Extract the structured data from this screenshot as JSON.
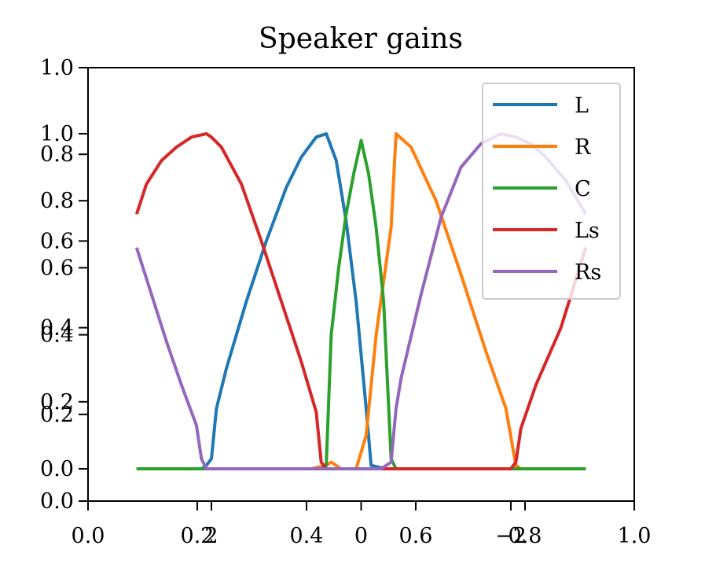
{
  "chart_data": {
    "type": "line",
    "title": "Speaker gains",
    "xlabel": "",
    "ylabel": "",
    "xlim": [
      0,
      1
    ],
    "ylim": [
      0,
      1
    ],
    "grid": false,
    "legend_placement": "top-right",
    "outer_x_ticks": [
      {
        "value": 0.0,
        "label": "0.0"
      },
      {
        "value": 0.2,
        "label": "0.2"
      },
      {
        "value": 0.4,
        "label": "0.4"
      },
      {
        "value": 0.6,
        "label": "0.6"
      },
      {
        "value": 0.8,
        "label": "0.8"
      },
      {
        "value": 1.0,
        "label": "1.0"
      }
    ],
    "outer_y_ticks": [
      {
        "value": 0.0,
        "label": "0.0"
      },
      {
        "value": 0.2,
        "label": "0.2"
      },
      {
        "value": 0.4,
        "label": "0.4"
      },
      {
        "value": 0.6,
        "label": "0.6"
      },
      {
        "value": 0.8,
        "label": "0.8"
      },
      {
        "value": 1.0,
        "label": "1.0"
      }
    ],
    "inner_x_ticks": [
      {
        "value": 0.2,
        "label": "2"
      },
      {
        "value": 0.5,
        "label": "0"
      },
      {
        "value": 0.8,
        "label": "−2"
      }
    ],
    "inner_y_ticks": [
      {
        "value": 0.0,
        "label": "0.0"
      },
      {
        "value": 0.2,
        "label": "0.2"
      },
      {
        "value": 0.4,
        "label": "0.4"
      },
      {
        "value": 0.6,
        "label": "0.6"
      },
      {
        "value": 0.8,
        "label": "0.8"
      },
      {
        "value": 1.0,
        "label": "1.0"
      }
    ],
    "series": [
      {
        "name": "L",
        "color": "#1f77b4",
        "x": [
          0.05,
          0.1,
          0.15,
          0.18,
          0.19,
          0.2,
          0.21,
          0.23,
          0.27,
          0.31,
          0.35,
          0.38,
          0.41,
          0.43,
          0.45,
          0.47,
          0.49,
          0.51,
          0.52,
          0.55,
          0.57,
          0.6,
          0.7,
          0.8,
          0.9,
          0.95
        ],
        "y": [
          0,
          0,
          0,
          0,
          0.01,
          0.03,
          0.18,
          0.3,
          0.5,
          0.68,
          0.84,
          0.93,
          0.99,
          1.0,
          0.92,
          0.74,
          0.5,
          0.18,
          0.01,
          0.0,
          0.0,
          0.0,
          0.0,
          0.0,
          0.0,
          0.0
        ]
      },
      {
        "name": "R",
        "color": "#ff7f0e",
        "x": [
          0.05,
          0.2,
          0.4,
          0.43,
          0.44,
          0.46,
          0.48,
          0.49,
          0.51,
          0.53,
          0.56,
          0.57,
          0.6,
          0.65,
          0.7,
          0.75,
          0.79,
          0.81,
          0.82,
          0.85,
          0.9,
          0.95
        ],
        "y": [
          0,
          0,
          0,
          0.01,
          0.02,
          0.0,
          0.0,
          0.0,
          0.1,
          0.4,
          0.72,
          1.0,
          0.96,
          0.8,
          0.58,
          0.35,
          0.18,
          0.01,
          0.0,
          0.0,
          0.0,
          0.0
        ]
      },
      {
        "name": "C",
        "color": "#2ca02c",
        "x": [
          0.05,
          0.2,
          0.42,
          0.43,
          0.44,
          0.455,
          0.47,
          0.485,
          0.5,
          0.515,
          0.53,
          0.545,
          0.56,
          0.57,
          0.6,
          0.8,
          0.95
        ],
        "y": [
          0,
          0,
          0,
          0.01,
          0.4,
          0.6,
          0.76,
          0.88,
          0.98,
          0.88,
          0.72,
          0.5,
          0.03,
          0.0,
          0.0,
          0.0,
          0.0
        ]
      },
      {
        "name": "Ls",
        "color": "#d62728",
        "x": [
          0.05,
          0.07,
          0.1,
          0.13,
          0.16,
          0.19,
          0.2,
          0.22,
          0.26,
          0.3,
          0.34,
          0.38,
          0.41,
          0.42,
          0.43,
          0.45,
          0.5,
          0.6,
          0.7,
          0.8,
          0.81,
          0.82,
          0.85,
          0.9,
          0.95
        ],
        "y": [
          0.76,
          0.85,
          0.92,
          0.96,
          0.99,
          1.0,
          0.99,
          0.96,
          0.85,
          0.68,
          0.5,
          0.32,
          0.17,
          0.02,
          0.0,
          0.0,
          0.0,
          0.0,
          0.0,
          0.0,
          0.02,
          0.12,
          0.25,
          0.42,
          0.66
        ]
      },
      {
        "name": "Rs",
        "color": "#9467bd",
        "x": [
          0.05,
          0.08,
          0.11,
          0.14,
          0.17,
          0.18,
          0.19,
          0.2,
          0.3,
          0.42,
          0.44,
          0.46,
          0.5,
          0.54,
          0.56,
          0.57,
          0.58,
          0.62,
          0.66,
          0.7,
          0.74,
          0.78,
          0.81,
          0.84,
          0.87,
          0.91,
          0.95
        ],
        "y": [
          0.66,
          0.52,
          0.38,
          0.25,
          0.13,
          0.03,
          0.0,
          0.0,
          0.0,
          0.0,
          0.0,
          0.0,
          0.0,
          0.0,
          0.02,
          0.18,
          0.27,
          0.52,
          0.75,
          0.9,
          0.97,
          1.0,
          0.99,
          0.97,
          0.93,
          0.86,
          0.76
        ]
      }
    ]
  }
}
